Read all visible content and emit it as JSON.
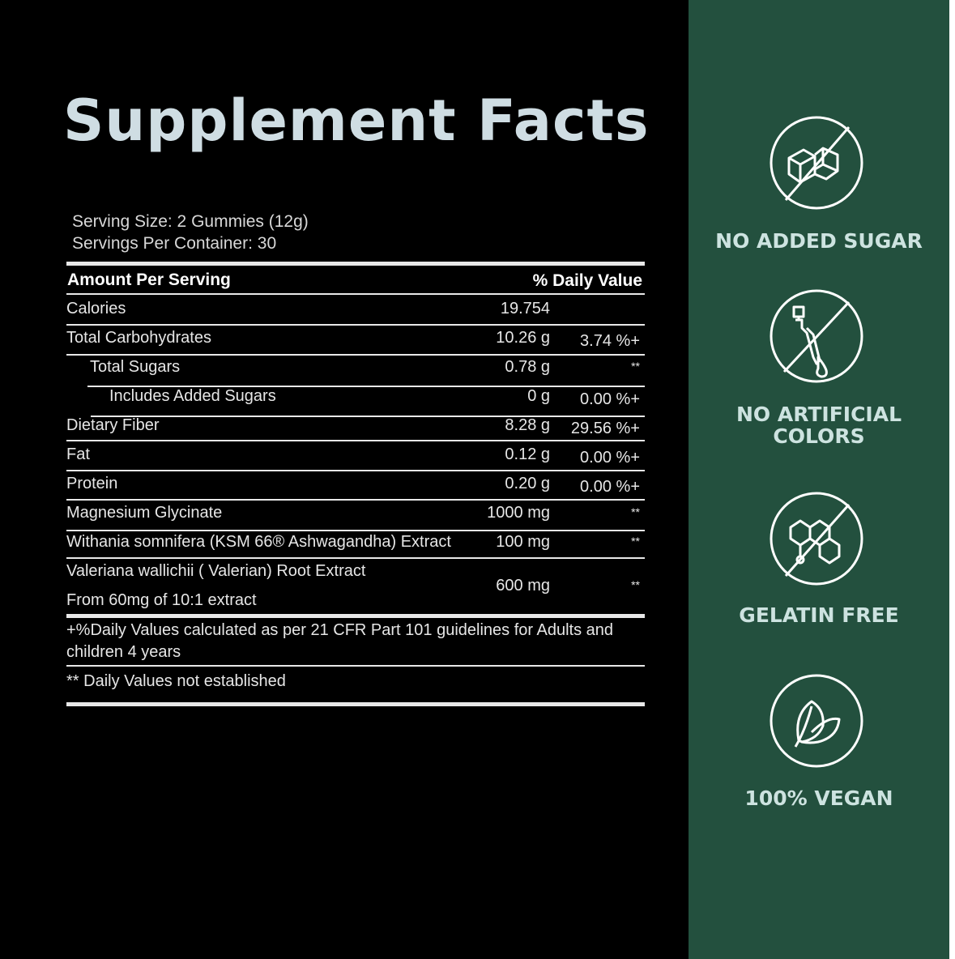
{
  "title": "Supplement Facts",
  "serving_size": "Serving Size: 2 Gummies (12g)",
  "servings_per_container": "Servings Per Container: 30",
  "table": {
    "header_left": "Amount Per Serving",
    "header_right": "% Daily Value",
    "rows": [
      {
        "name": "Calories",
        "amount": "19.754",
        "dv": ""
      },
      {
        "name": "Total Carbohydrates",
        "amount": "10.26 g",
        "dv": "3.74 %+"
      },
      {
        "name": "Total Sugars",
        "amount": "0.78 g",
        "dv": "**"
      },
      {
        "name": "Includes Added Sugars",
        "amount": "0 g",
        "dv": "0.00 %+"
      },
      {
        "name": "Dietary Fiber",
        "amount": "8.28 g",
        "dv": "29.56 %+"
      },
      {
        "name": "Fat",
        "amount": "0.12 g",
        "dv": "0.00 %+"
      },
      {
        "name": "Protein",
        "amount": "0.20 g",
        "dv": "0.00 %+"
      },
      {
        "name": "Magnesium Glycinate",
        "amount": "1000 mg",
        "dv": "**"
      },
      {
        "name": "Withania somnifera (KSM 66® Ashwagandha) Extract",
        "amount": "100 mg",
        "dv": "**"
      },
      {
        "name": "Valeriana wallichii ( Valerian) Root Extract",
        "subname": "From 60mg of 10:1 extract",
        "amount": "600 mg",
        "dv": "**"
      }
    ],
    "footnote_1": "+%Daily Values calculated as per 21 CFR Part 101 guidelines for Adults and children  4 years",
    "footnote_2": "** Daily Values not established"
  },
  "badges": [
    {
      "label": "NO ADDED SUGAR",
      "icon": "no-sugar-cube-icon"
    },
    {
      "label": "NO ARTIFICIAL COLORS",
      "icon": "no-dropper-icon"
    },
    {
      "label": "GELATIN FREE",
      "icon": "no-molecule-icon"
    },
    {
      "label": "100% VEGAN",
      "icon": "leaf-icon"
    }
  ],
  "colors": {
    "background": "#000000",
    "panel": "#23503e",
    "title": "#cfdde3",
    "badge_text": "#cde3e0"
  }
}
